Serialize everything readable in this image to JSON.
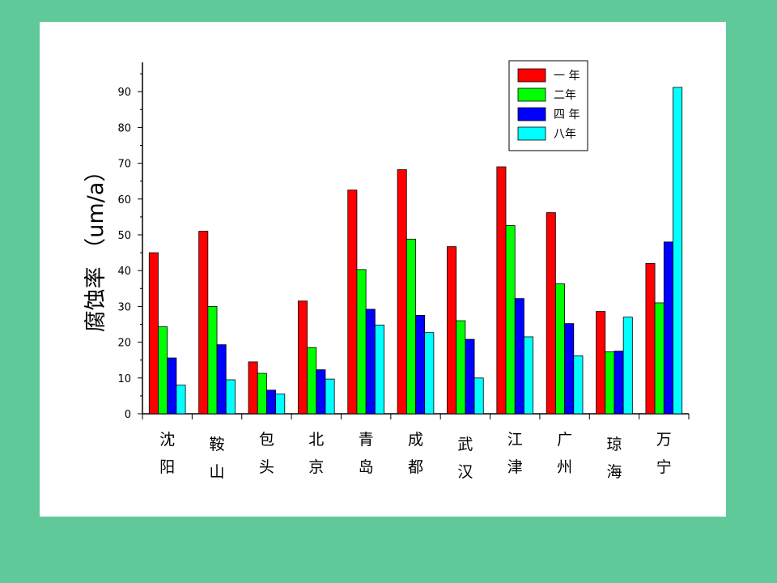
{
  "chart_data": {
    "type": "bar",
    "ylabel": "腐蚀率 （um/a）",
    "ylim": [
      0,
      98
    ],
    "yticks": [
      0,
      10,
      20,
      30,
      40,
      50,
      60,
      70,
      80,
      90
    ],
    "legend_position": "top-right",
    "grid": false,
    "categories": [
      [
        "沈",
        "阳"
      ],
      [
        "鞍",
        "山"
      ],
      [
        "包",
        "头"
      ],
      [
        "北",
        "京"
      ],
      [
        "青",
        "岛"
      ],
      [
        "成",
        "都"
      ],
      [
        "武",
        "汉"
      ],
      [
        "江",
        "津"
      ],
      [
        "广",
        "州"
      ],
      [
        "琼",
        "海"
      ],
      [
        "万",
        "宁"
      ]
    ],
    "series": [
      {
        "name": "一 年",
        "color": "#ff0000",
        "values": [
          45.0,
          51.0,
          14.5,
          31.5,
          62.5,
          68.2,
          46.7,
          69.0,
          56.2,
          28.6,
          42.0
        ]
      },
      {
        "name": "二年",
        "color": "#00ff00",
        "values": [
          24.3,
          30.0,
          11.3,
          18.5,
          40.3,
          48.8,
          26.0,
          52.6,
          36.3,
          17.3,
          31.0
        ]
      },
      {
        "name": "四 年",
        "color": "#0000ff",
        "values": [
          15.6,
          19.3,
          6.6,
          12.3,
          29.2,
          27.5,
          20.8,
          32.2,
          25.2,
          17.5,
          48.0
        ]
      },
      {
        "name": "八年",
        "color": "#00ffff",
        "values": [
          8.0,
          9.5,
          5.5,
          9.7,
          24.8,
          22.7,
          10.0,
          21.5,
          16.2,
          27.0,
          91.2
        ]
      }
    ]
  }
}
